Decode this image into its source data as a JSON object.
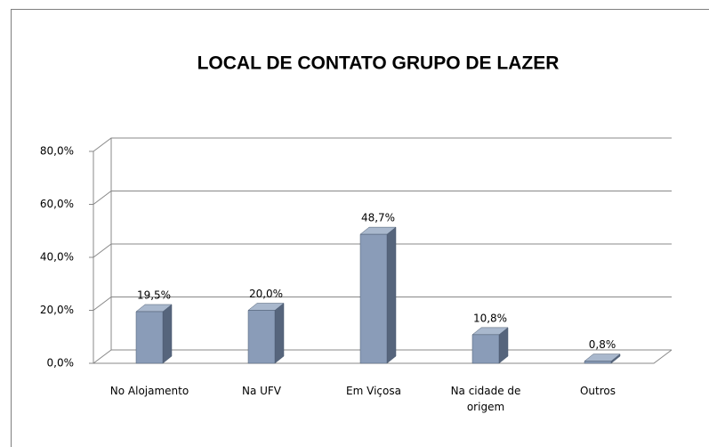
{
  "chart_data": {
    "type": "bar3d",
    "title": "LOCAL DE CONTATO GRUPO DE LAZER",
    "categories": [
      "No Alojamento",
      "Na UFV",
      "Em Viçosa",
      "Na cidade de origem",
      "Outros"
    ],
    "values": [
      19.5,
      20.0,
      48.7,
      10.8,
      0.8
    ],
    "value_labels": [
      "19,5%",
      "20,0%",
      "48,7%",
      "10,8%",
      "0,8%"
    ],
    "color": "#8a9cb8",
    "ylim": [
      0,
      80
    ],
    "yticks": [
      {
        "value": 0,
        "label": "0,0%"
      },
      {
        "value": 20,
        "label": "20,0%"
      },
      {
        "value": 40,
        "label": "40,0%"
      },
      {
        "value": 60,
        "label": "60,0%"
      },
      {
        "value": 80,
        "label": "80,0%"
      }
    ],
    "grid": true
  }
}
